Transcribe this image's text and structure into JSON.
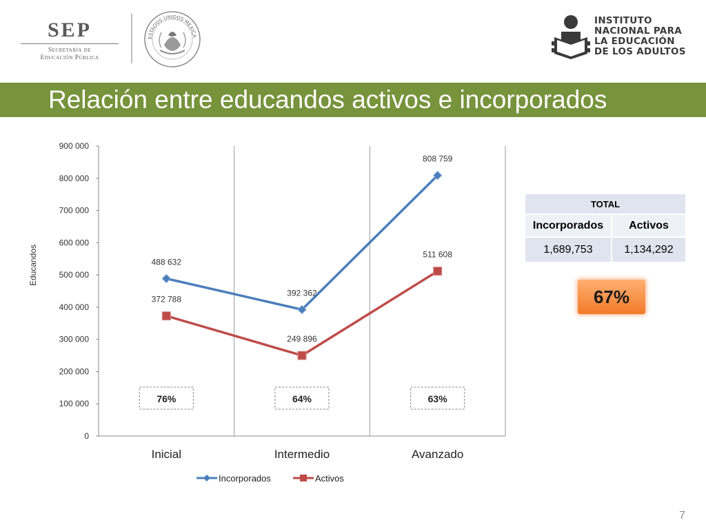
{
  "header": {
    "sep": {
      "word": "SEP",
      "line1": "Secretaría de",
      "line2": "Educación Pública"
    },
    "seal": {
      "legend": "ESTADOS UNIDOS MEXICANOS"
    },
    "inea": {
      "line1": "INSTITUTO",
      "line2": "NACIONAL PARA",
      "line3": "LA EDUCACIÓN",
      "line4": "DE LOS ADULTOS"
    }
  },
  "slide": {
    "title": "Relación entre educandos activos e incorporados",
    "page_number": "7",
    "title_bar_color": "#77933c"
  },
  "chart_data": {
    "type": "line",
    "categories": [
      "Inicial",
      "Intermedio",
      "Avanzado"
    ],
    "ylabel": "Educandos",
    "ylim": [
      0,
      900000
    ],
    "yticks": [
      0,
      100000,
      200000,
      300000,
      400000,
      500000,
      600000,
      700000,
      800000,
      900000
    ],
    "ytick_labels": [
      "0",
      "100 000",
      "200 000",
      "300 000",
      "400 000",
      "500 000",
      "600 000",
      "700 000",
      "800 000",
      "900 000"
    ],
    "grid": "vertical category separators",
    "legend": "bottom",
    "series": [
      {
        "name": "Incorporados",
        "values": [
          488632,
          392362,
          808759
        ],
        "labels": [
          "488 632",
          "392 362",
          "808 759"
        ],
        "color": "#4a7ebb",
        "marker": "diamond"
      },
      {
        "name": "Activos",
        "values": [
          372788,
          249896,
          511608
        ],
        "labels": [
          "372 788",
          "249 896",
          "511 608"
        ],
        "color": "#be4b48",
        "marker": "square"
      }
    ],
    "annotations": [
      "76%",
      "64%",
      "63%"
    ]
  },
  "total": {
    "header": "TOTAL",
    "col1": "Incorporados",
    "col2": "Activos",
    "val1": "1,689,753",
    "val2": "1,134,292",
    "ratio": "67%"
  }
}
